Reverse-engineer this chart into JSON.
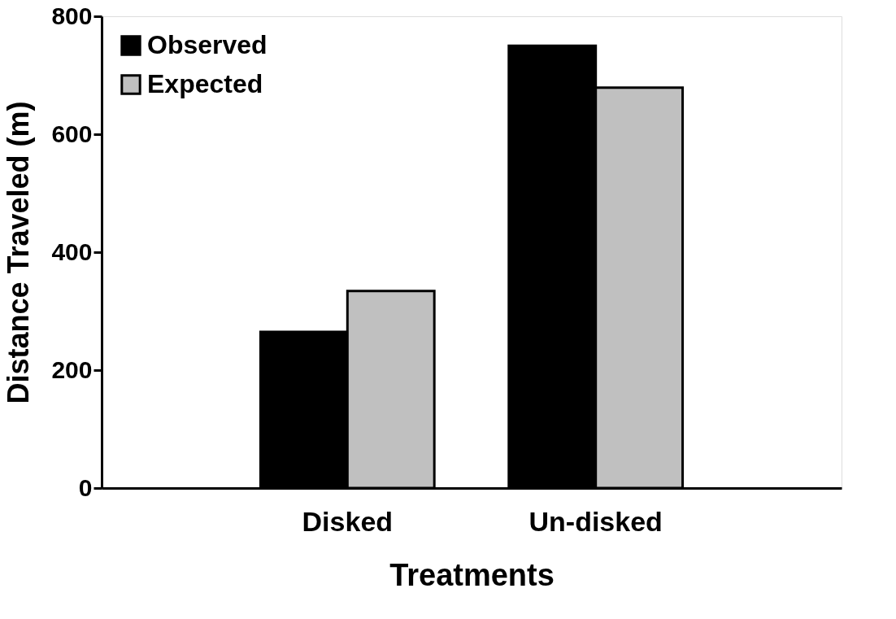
{
  "chart_data": {
    "type": "bar",
    "xlabel": "Treatments",
    "ylabel": "Distance Traveled (m)",
    "categories": [
      "Disked",
      "Un-disked"
    ],
    "series": [
      {
        "name": "Observed",
        "color": "#000000",
        "values": [
          265,
          750
        ]
      },
      {
        "name": "Expected",
        "color": "#c0c0c0",
        "values": [
          334,
          679
        ]
      }
    ],
    "ylim": [
      0,
      800
    ],
    "yticks": [
      0,
      200,
      400,
      600,
      800
    ],
    "grid": false,
    "legend": "top left"
  }
}
